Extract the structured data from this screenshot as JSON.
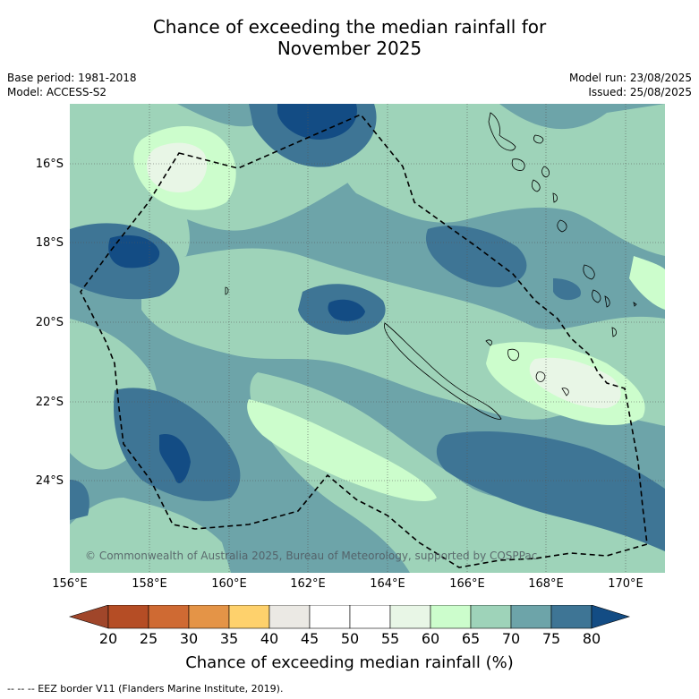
{
  "title_line1": "Chance of exceeding the median rainfall for",
  "title_line2": "November 2025",
  "base_period": "Base period: 1981-2018",
  "model": "Model: ACCESS-S2",
  "model_run": "Model run: 23/08/2025",
  "issued": "Issued: 25/08/2025",
  "lat_labels": [
    "16°S",
    "18°S",
    "20°S",
    "22°S",
    "24°S"
  ],
  "lon_labels": [
    "156°E",
    "158°E",
    "160°E",
    "162°E",
    "164°E",
    "166°E",
    "168°E",
    "170°E"
  ],
  "colorbar": {
    "ticks": [
      "20",
      "25",
      "30",
      "35",
      "40",
      "45",
      "50",
      "55",
      "60",
      "65",
      "70",
      "75",
      "80"
    ],
    "title": "Chance of exceeding median rainfall (%)",
    "colors": [
      "#a0462a",
      "#b54d25",
      "#cf6a33",
      "#e49447",
      "#fed16c",
      "#ebe9e4",
      "#ffffff",
      "#ffffff",
      "#e8f6e6",
      "#ccfdcc",
      "#9ed3b9",
      "#6da4a9",
      "#3e7595",
      "#134c84"
    ]
  },
  "copyright": "© Commonwealth of Australia 2025, Bureau of Meteorology, supported by COSPPac",
  "footnote": "-- -- -- EEZ border V11 (Flanders Marine Institute, 2019).",
  "map": {
    "base_color": "#6da4a9",
    "features": [
      "New Caledonia",
      "Vanuatu",
      "Loyalty Islands",
      "EEZ border"
    ]
  }
}
